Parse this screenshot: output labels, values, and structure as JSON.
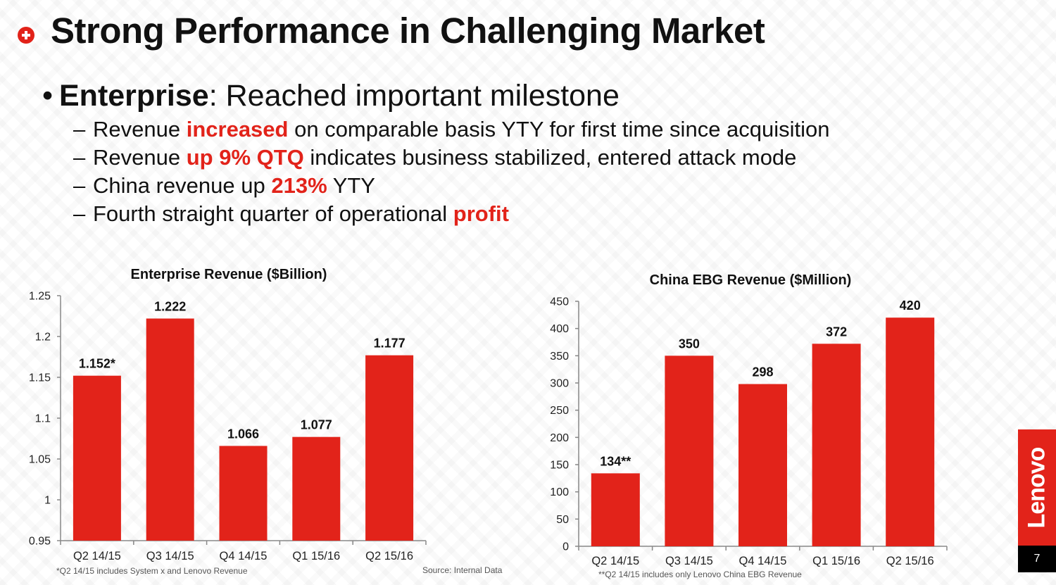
{
  "slide": {
    "title": "Strong Performance in Challenging Market",
    "bullet": {
      "bold": "Enterprise",
      "rest": ": Reached important milestone"
    },
    "sub_bullets": [
      {
        "pre": "Revenue ",
        "hl": "increased",
        "post": " on comparable basis YTY for first time since acquisition"
      },
      {
        "pre": "Revenue ",
        "hl": "up 9% QTQ",
        "post": " indicates business stabilized, entered attack mode"
      },
      {
        "pre": "China revenue up ",
        "hl": "213%",
        "post": " YTY"
      },
      {
        "pre": "Fourth straight quarter of operational ",
        "hl": "profit",
        "post": ""
      }
    ],
    "dash": "–",
    "dot": "•",
    "logo": "Lenovo",
    "page_number": "7",
    "colors": {
      "accent": "#e2231a",
      "bar": "#e2231a",
      "axis": "#888888"
    }
  },
  "chart_data": [
    {
      "type": "bar",
      "title": "Enterprise Revenue ($Billion)",
      "categories": [
        "Q2 14/15",
        "Q3 14/15",
        "Q4 14/15",
        "Q1 15/16",
        "Q2 15/16"
      ],
      "values": [
        1.152,
        1.222,
        1.066,
        1.077,
        1.177
      ],
      "data_labels": [
        "1.152*",
        "1.222",
        "1.066",
        "1.077",
        "1.177"
      ],
      "ylim": [
        0.95,
        1.25
      ],
      "yticks": [
        0.95,
        1,
        1.05,
        1.1,
        1.15,
        1.2,
        1.25
      ],
      "ytick_labels": [
        "0.95",
        "1",
        "1.05",
        "1.1",
        "1.15",
        "1.2",
        "1.25"
      ],
      "xlabel": "",
      "ylabel": "",
      "grid": false,
      "footnote": "*Q2 14/15 includes System x and Lenovo Revenue",
      "source": "Source: Internal Data"
    },
    {
      "type": "bar",
      "title": "China EBG Revenue ($Million)",
      "categories": [
        "Q2 14/15",
        "Q3 14/15",
        "Q4 14/15",
        "Q1 15/16",
        "Q2 15/16"
      ],
      "values": [
        134,
        350,
        298,
        372,
        420
      ],
      "data_labels": [
        "134**",
        "350",
        "298",
        "372",
        "420"
      ],
      "ylim": [
        0,
        450
      ],
      "yticks": [
        0,
        50,
        100,
        150,
        200,
        250,
        300,
        350,
        400,
        450
      ],
      "ytick_labels": [
        "0",
        "50",
        "100",
        "150",
        "200",
        "250",
        "300",
        "350",
        "400",
        "450"
      ],
      "xlabel": "",
      "ylabel": "",
      "grid": false,
      "footnote": "**Q2 14/15 includes only Lenovo China EBG Revenue"
    }
  ]
}
